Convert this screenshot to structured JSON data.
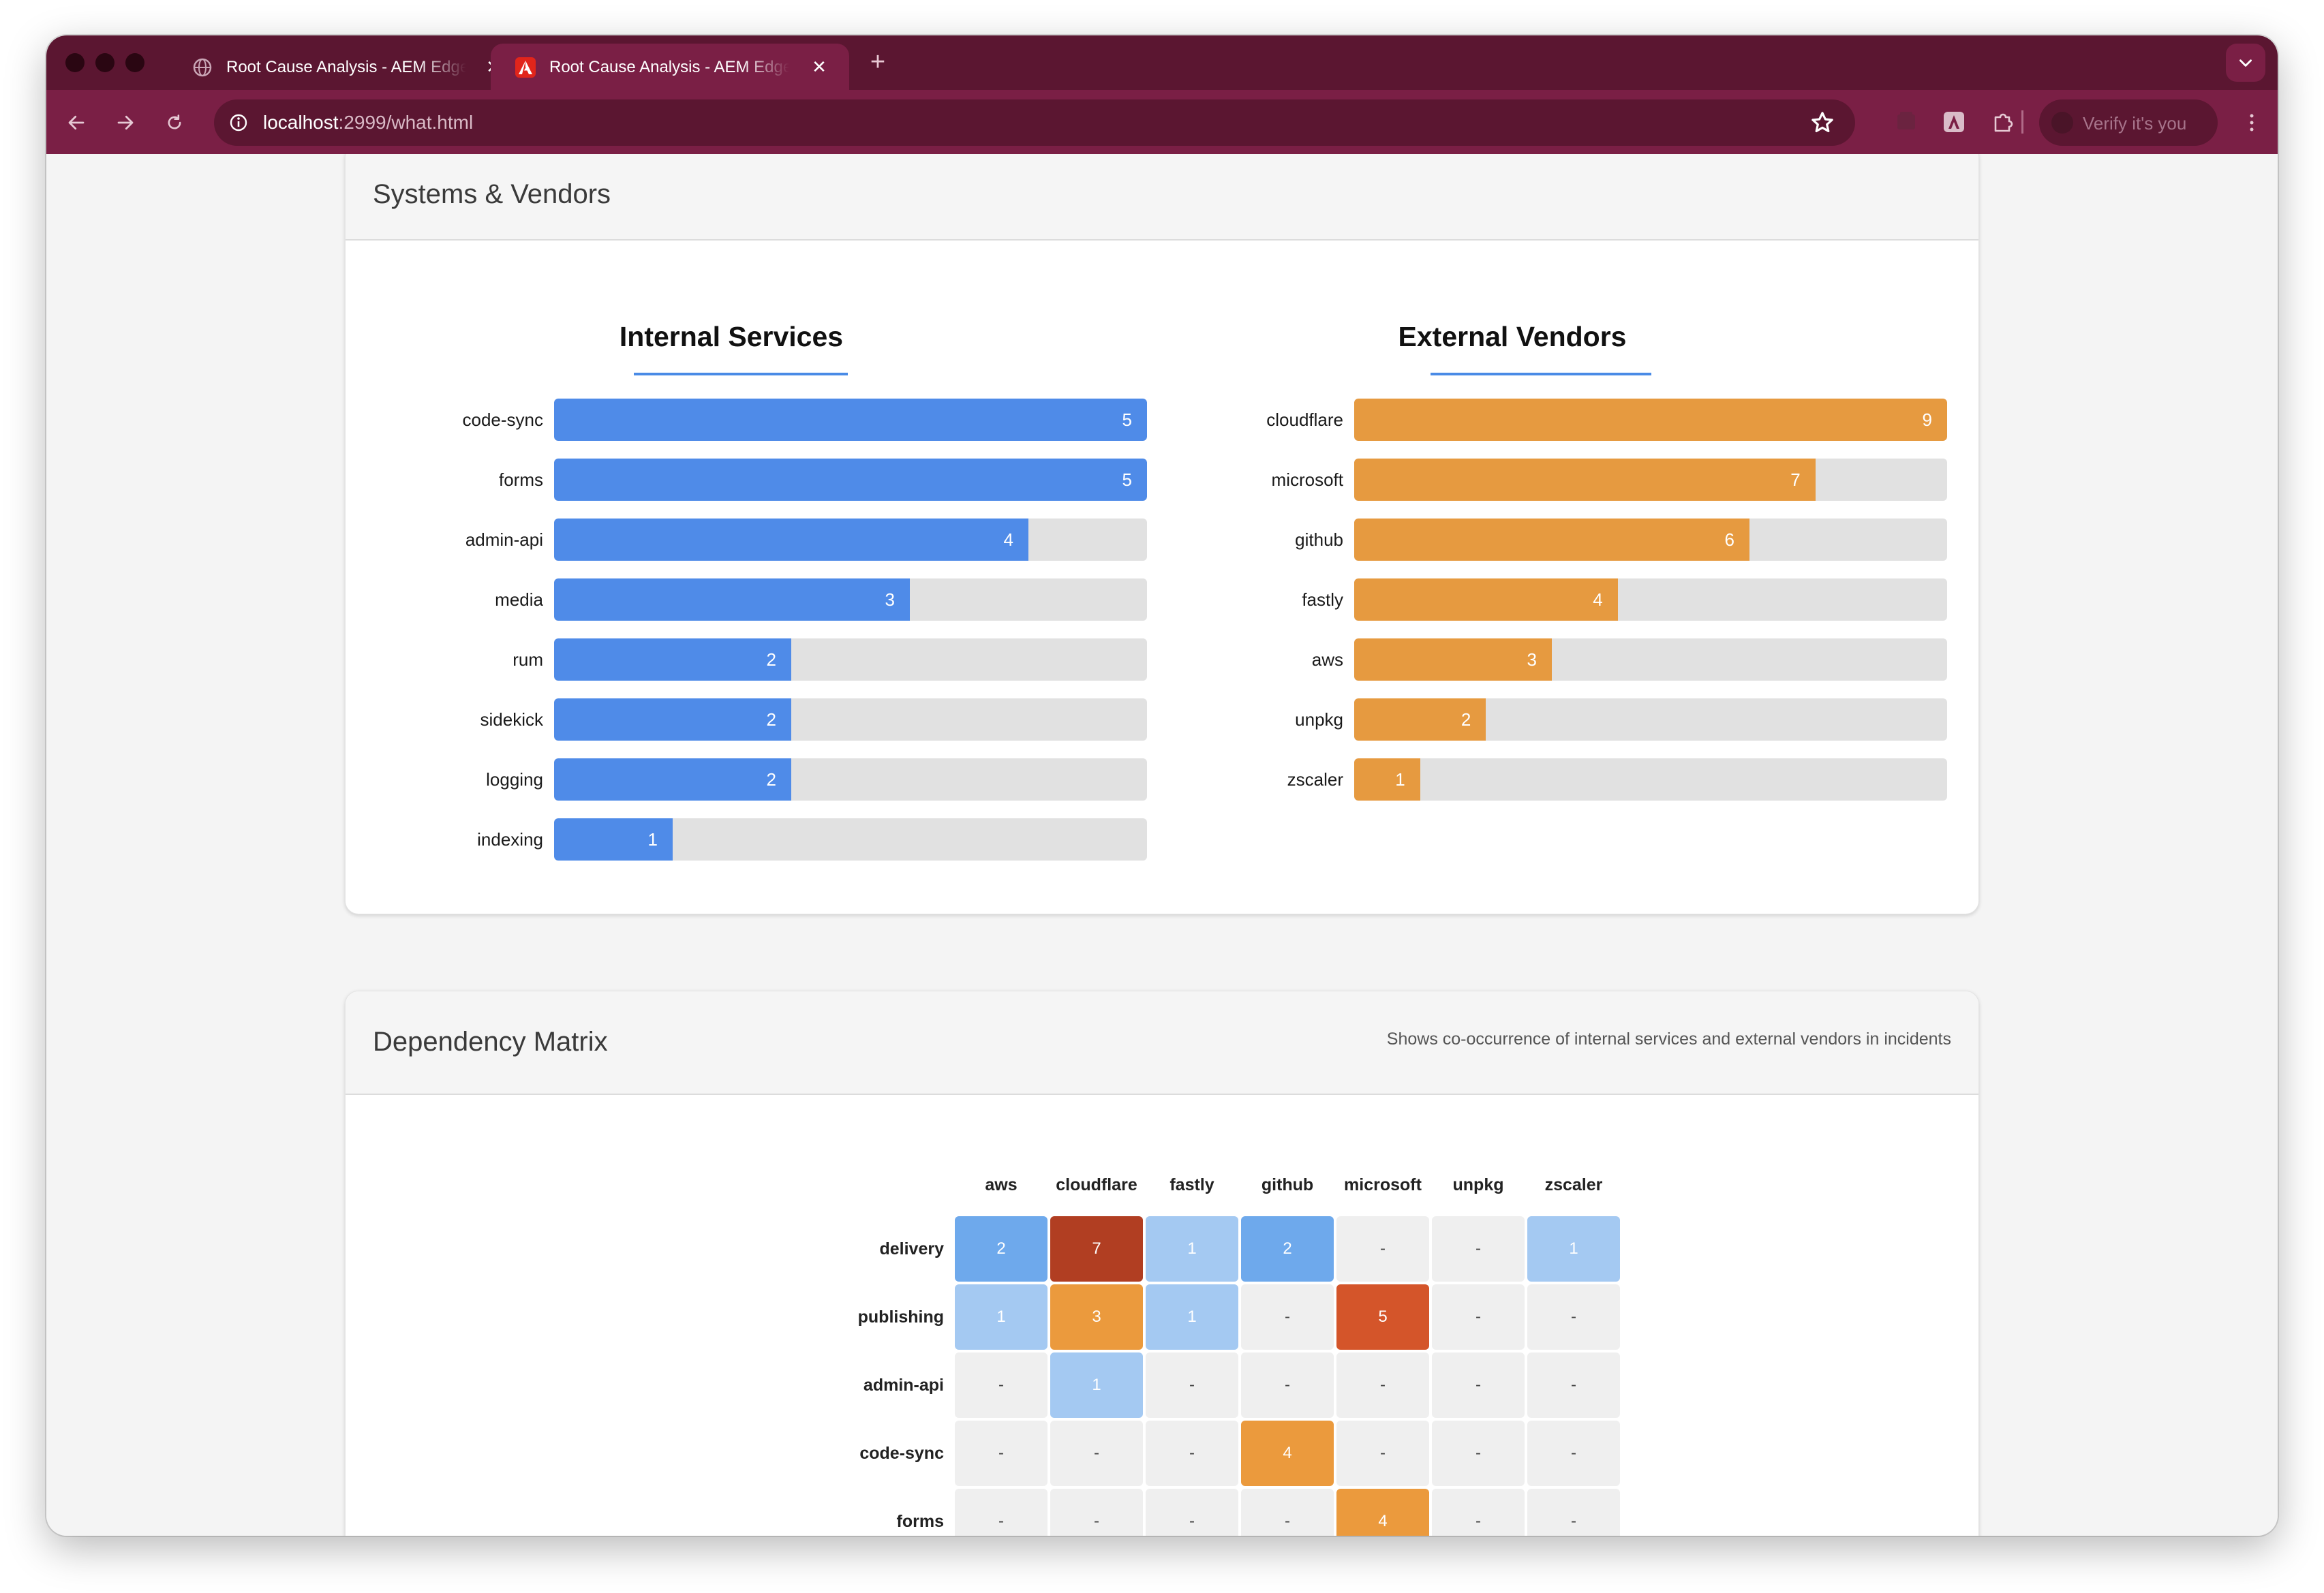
{
  "browser": {
    "tabs": [
      {
        "title": "Root Cause Analysis - AEM Edge",
        "active": false,
        "favicon": "globe-icon"
      },
      {
        "title": "Root Cause Analysis - AEM Edge",
        "active": true,
        "favicon": "adobe-icon"
      }
    ],
    "close_glyph": "✕",
    "new_tab_glyph": "+",
    "url_host": "localhost",
    "url_rest": ":2999/what.html",
    "profile_button": "Verify it's you"
  },
  "systems_card": {
    "title": "Systems & Vendors",
    "internal_title": "Internal Services",
    "external_title": "External Vendors"
  },
  "chart_data": [
    {
      "type": "bar",
      "title": "Internal Services",
      "orientation": "horizontal",
      "categories": [
        "code-sync",
        "forms",
        "admin-api",
        "media",
        "rum",
        "sidekick",
        "logging",
        "indexing"
      ],
      "values": [
        5,
        5,
        4,
        3,
        2,
        2,
        2,
        1
      ],
      "xlim": [
        0,
        5
      ],
      "color": "#4f8be8",
      "track_color": "#e1e1e1"
    },
    {
      "type": "bar",
      "title": "External Vendors",
      "orientation": "horizontal",
      "categories": [
        "cloudflare",
        "microsoft",
        "github",
        "fastly",
        "aws",
        "unpkg",
        "zscaler"
      ],
      "values": [
        9,
        7,
        6,
        4,
        3,
        2,
        1
      ],
      "xlim": [
        0,
        9
      ],
      "color": "#e69a40",
      "track_color": "#e1e1e1"
    },
    {
      "type": "heatmap",
      "title": "Dependency Matrix",
      "columns": [
        "aws",
        "cloudflare",
        "fastly",
        "github",
        "microsoft",
        "unpkg",
        "zscaler"
      ],
      "rows": [
        "delivery",
        "publishing",
        "admin-api",
        "code-sync",
        "forms"
      ],
      "values": [
        [
          2,
          7,
          1,
          2,
          null,
          null,
          1
        ],
        [
          1,
          3,
          1,
          null,
          5,
          null,
          null
        ],
        [
          null,
          1,
          null,
          null,
          null,
          null,
          null
        ],
        [
          null,
          null,
          null,
          4,
          null,
          null,
          null
        ],
        [
          null,
          null,
          null,
          null,
          4,
          null,
          null
        ]
      ],
      "empty_symbol": "-"
    }
  ],
  "matrix_card": {
    "title": "Dependency Matrix",
    "description": "Shows co-occurrence of internal services and external vendors in incidents"
  },
  "colors": {
    "frame": "#5b1631",
    "toolbar": "#7a1f45",
    "internal_bar": "#4f8be8",
    "external_bar": "#e69a40",
    "heat_light_blue": "#a4c9f2",
    "heat_blue": "#6ea9ec",
    "heat_orange": "#eb9a3d",
    "heat_dark_orange": "#d4552a",
    "heat_red_brown": "#b13e22",
    "heat_empty": "#efefef"
  }
}
